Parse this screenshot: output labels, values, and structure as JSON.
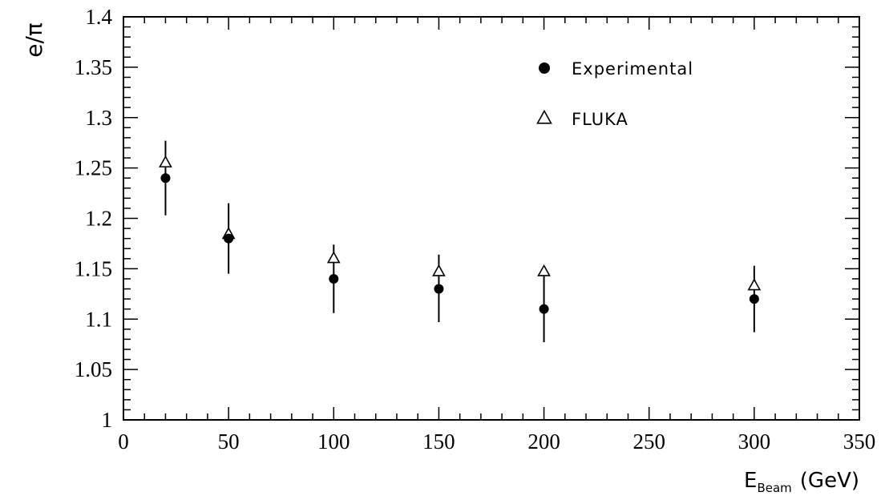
{
  "chart_data": {
    "type": "scatter",
    "title": "",
    "xlabel": {
      "main": "E",
      "sub": "Beam",
      "unit": "(GeV)"
    },
    "ylabel": "e/π",
    "xlim": [
      0,
      350
    ],
    "ylim": [
      1,
      1.4
    ],
    "x_ticks": [
      0,
      50,
      100,
      150,
      200,
      250,
      300,
      350
    ],
    "y_ticks": [
      1,
      1.05,
      1.1,
      1.15,
      1.2,
      1.25,
      1.3,
      1.35,
      1.4
    ],
    "x_tick_labels": [
      "0",
      "50",
      "100",
      "150",
      "200",
      "250",
      "300",
      "350"
    ],
    "y_tick_labels": [
      "1",
      "1.05",
      "1.1",
      "1.15",
      "1.2",
      "1.25",
      "1.3",
      "1.35",
      "1.4"
    ],
    "x_minor_step": 10,
    "y_minor_step": 0.01,
    "grid": false,
    "legend_position": "top-right",
    "series": [
      {
        "name": "Experimental",
        "marker": "filled-circle",
        "points": [
          {
            "x": 20,
            "y": 1.24,
            "err_low": 1.203,
            "err_high": 1.277
          },
          {
            "x": 50,
            "y": 1.18,
            "err_low": 1.145,
            "err_high": 1.215
          },
          {
            "x": 100,
            "y": 1.14,
            "err_low": 1.106,
            "err_high": 1.174
          },
          {
            "x": 150,
            "y": 1.13,
            "err_low": 1.097,
            "err_high": 1.164
          },
          {
            "x": 200,
            "y": 1.11,
            "err_low": 1.077,
            "err_high": 1.144
          },
          {
            "x": 300,
            "y": 1.12,
            "err_low": 1.087,
            "err_high": 1.153
          }
        ]
      },
      {
        "name": "FLUKA",
        "marker": "open-triangle",
        "points": [
          {
            "x": 20,
            "y": 1.255
          },
          {
            "x": 50,
            "y": 1.184
          },
          {
            "x": 100,
            "y": 1.16
          },
          {
            "x": 150,
            "y": 1.147
          },
          {
            "x": 200,
            "y": 1.147
          },
          {
            "x": 300,
            "y": 1.133
          }
        ]
      }
    ]
  }
}
